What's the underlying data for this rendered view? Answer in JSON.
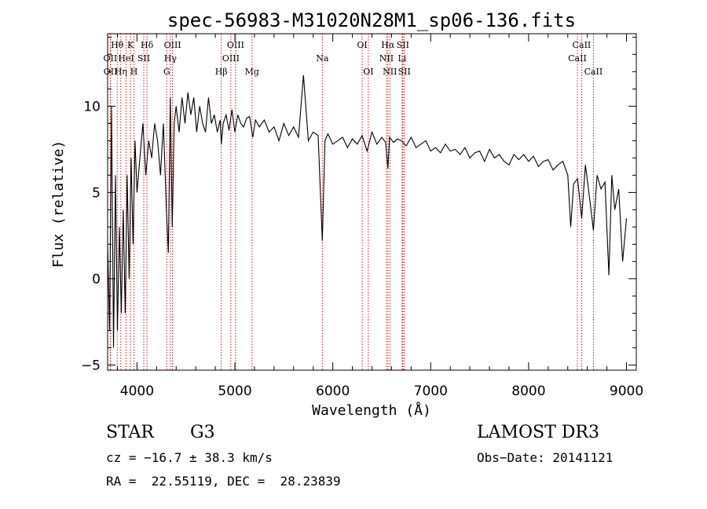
{
  "chart_data": {
    "type": "line",
    "title": "spec-56983-M31020N28M1_sp06-136.fits",
    "xlabel": "Wavelength (Å)",
    "ylabel": "Flux (relative)",
    "xlim": [
      3700,
      9100
    ],
    "ylim": [
      -5.3,
      14.2
    ],
    "x_ticks": [
      4000,
      5000,
      6000,
      7000,
      8000,
      9000
    ],
    "x_tick_labels": [
      "4000",
      "5000",
      "6000",
      "7000",
      "8000",
      "9000"
    ],
    "y_ticks": [
      -5,
      0,
      5,
      10
    ],
    "y_tick_labels": [
      "−5",
      "0",
      "5",
      "10"
    ],
    "grid": false,
    "series": [
      {
        "name": "flux",
        "x": [
          3700,
          3720,
          3740,
          3760,
          3780,
          3800,
          3820,
          3840,
          3860,
          3880,
          3900,
          3920,
          3940,
          3960,
          3980,
          4000,
          4030,
          4060,
          4090,
          4120,
          4150,
          4180,
          4210,
          4240,
          4270,
          4300,
          4320,
          4340,
          4360,
          4380,
          4400,
          4430,
          4460,
          4490,
          4520,
          4550,
          4580,
          4610,
          4640,
          4670,
          4700,
          4730,
          4760,
          4790,
          4820,
          4850,
          4861,
          4880,
          4910,
          4940,
          4970,
          5000,
          5030,
          5060,
          5090,
          5120,
          5150,
          5183,
          5210,
          5250,
          5300,
          5350,
          5400,
          5450,
          5500,
          5550,
          5600,
          5650,
          5700,
          5750,
          5800,
          5850,
          5893,
          5920,
          5950,
          6000,
          6050,
          6100,
          6150,
          6200,
          6250,
          6300,
          6350,
          6400,
          6450,
          6500,
          6540,
          6563,
          6580,
          6620,
          6660,
          6700,
          6750,
          6800,
          6850,
          6900,
          6950,
          7000,
          7050,
          7100,
          7150,
          7200,
          7250,
          7300,
          7350,
          7400,
          7450,
          7500,
          7550,
          7600,
          7650,
          7700,
          7750,
          7800,
          7850,
          7900,
          7950,
          8000,
          8050,
          8100,
          8150,
          8200,
          8250,
          8300,
          8350,
          8400,
          8430,
          8460,
          8500,
          8542,
          8580,
          8620,
          8662,
          8700,
          8740,
          8780,
          8820,
          8850,
          8880,
          8920,
          8960,
          9000
        ],
        "y": [
          2,
          -3,
          10,
          -4,
          6,
          -3,
          3,
          -2,
          4,
          -2,
          6,
          0,
          7,
          2,
          8,
          5,
          7,
          9,
          6,
          8,
          7,
          9,
          8,
          6,
          9,
          4,
          1.5,
          10.5,
          3,
          9,
          10,
          8.5,
          10.5,
          9,
          10.8,
          9.5,
          10.5,
          8.5,
          10,
          9,
          8.5,
          10.5,
          9,
          9.5,
          8.5,
          9.2,
          7.8,
          9,
          9.5,
          8.6,
          9.8,
          8.5,
          9.5,
          9,
          8.8,
          9.3,
          9.4,
          8.2,
          9.2,
          8.8,
          9.2,
          8.5,
          8.8,
          8,
          9,
          8.3,
          8.8,
          8.2,
          11.8,
          8,
          8.5,
          8.3,
          2.2,
          8,
          8.4,
          7.8,
          8,
          8.2,
          7.6,
          8.1,
          7.8,
          8.3,
          7.4,
          8.5,
          7.8,
          8.2,
          7.9,
          6.4,
          8.2,
          7.9,
          8.1,
          8,
          7.7,
          8.2,
          7.6,
          7.8,
          8,
          7.4,
          7.6,
          7.3,
          7.8,
          7.4,
          7.5,
          7.2,
          7.6,
          7,
          7.3,
          7.4,
          6.8,
          7.5,
          7,
          7.2,
          6.8,
          6.6,
          7.2,
          6.9,
          7.2,
          6.8,
          7.1,
          6.5,
          6.8,
          6.9,
          6.3,
          6.6,
          6.8,
          6,
          3,
          5.5,
          5.8,
          3.5,
          6.6,
          4.8,
          2.8,
          6,
          5.2,
          5.6,
          0.2,
          6,
          4,
          5.2,
          1,
          3.5
        ]
      }
    ],
    "lines": [
      {
        "label": "Hθ",
        "x": 3798,
        "row": 0
      },
      {
        "label": "OII",
        "x": 3727,
        "row": 1
      },
      {
        "label": "OII",
        "x": 3729,
        "row": 2
      },
      {
        "label": "Hη",
        "x": 3835,
        "row": 2
      },
      {
        "label": "HeI",
        "x": 3889,
        "row": 1
      },
      {
        "label": "K",
        "x": 3934,
        "row": 0
      },
      {
        "label": "H",
        "x": 3969,
        "row": 2
      },
      {
        "label": "SII",
        "x": 4069,
        "row": 1
      },
      {
        "label": "Hδ",
        "x": 4102,
        "row": 0
      },
      {
        "label": "G",
        "x": 4304,
        "row": 2
      },
      {
        "label": "Hγ",
        "x": 4341,
        "row": 1
      },
      {
        "label": "OIII",
        "x": 4363,
        "row": 0
      },
      {
        "label": "Hβ",
        "x": 4861,
        "row": 2
      },
      {
        "label": "OIII",
        "x": 4959,
        "row": 1
      },
      {
        "label": "OIII",
        "x": 5007,
        "row": 0
      },
      {
        "label": "Mg",
        "x": 5175,
        "row": 2
      },
      {
        "label": "Na",
        "x": 5893,
        "row": 1
      },
      {
        "label": "OI",
        "x": 6300,
        "row": 0
      },
      {
        "label": "OI",
        "x": 6363,
        "row": 2
      },
      {
        "label": "NII",
        "x": 6548,
        "row": 1
      },
      {
        "label": "Hα",
        "x": 6563,
        "row": 0
      },
      {
        "label": "NII",
        "x": 6583,
        "row": 2
      },
      {
        "label": "Li",
        "x": 6708,
        "row": 1
      },
      {
        "label": "SII",
        "x": 6716,
        "row": 0
      },
      {
        "label": "SII",
        "x": 6731,
        "row": 2
      },
      {
        "label": "CaII",
        "x": 8498,
        "row": 1
      },
      {
        "label": "CaII",
        "x": 8542,
        "row": 0
      },
      {
        "label": "CaII",
        "x": 8662,
        "row": 2
      }
    ]
  },
  "info": {
    "object_class": "STAR",
    "subclass": "G3",
    "survey": "LAMOST DR3",
    "cz": "cz = −16.7 ± 38.3 km/s",
    "obs_date": "Obs−Date: 20141121",
    "coords": "RA =  22.55119, DEC =  28.23839"
  }
}
